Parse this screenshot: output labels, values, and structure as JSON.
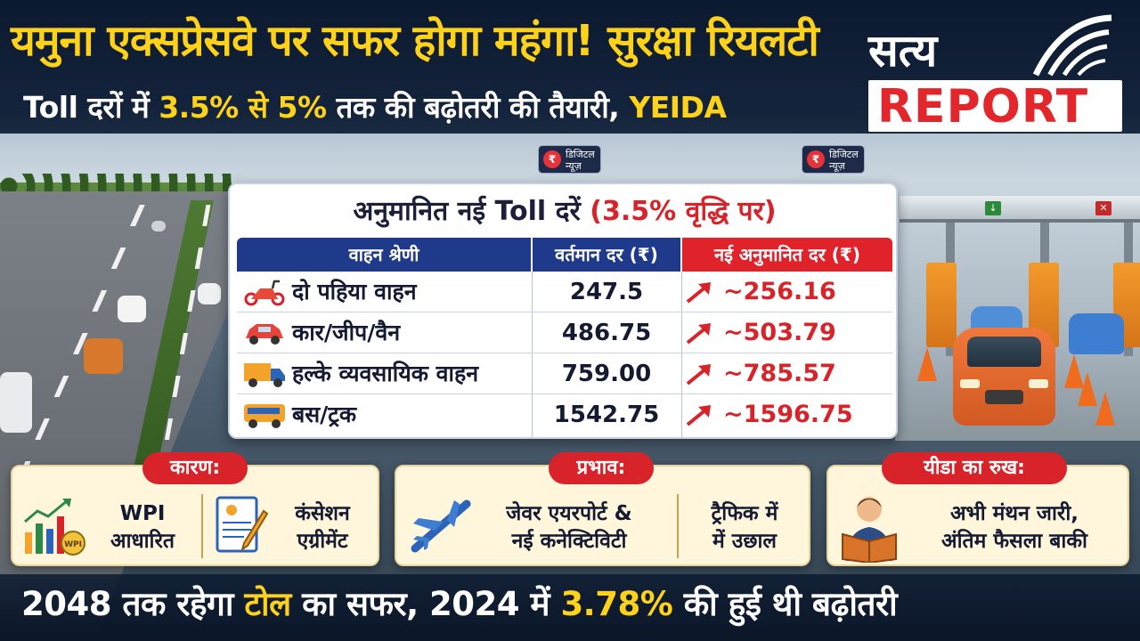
{
  "headline": {
    "line1_part1": "यमुना एक्सप्रेसवे पर सफर होगा",
    "line1_part2": "महंगा!",
    "line1_part3": "सुरक्षा रियलटी",
    "line2_part1": "Toll दरों में",
    "line2_part2": "3.5% से 5%",
    "line2_part3": "तक की बढ़ोतरी की तैयारी,",
    "line2_part4": "YEIDA"
  },
  "logo": {
    "top_text": "सत्य",
    "bottom_text": "REPORT",
    "accent_color": "#e3262b"
  },
  "badges": [
    {
      "line1": "डिजिटल",
      "line2": "न्यूज़"
    },
    {
      "line1": "डिजिटल",
      "line2": "न्यूज़"
    }
  ],
  "table": {
    "title_main": "अनुमानित नई Toll दरें",
    "title_note": "(3.5% वृद्धि पर)",
    "headers": [
      "वाहन श्रेणी",
      "वर्तमान दर (₹)",
      "नई अनुमानित दर (₹)"
    ],
    "rows": [
      {
        "icon": "scooter-icon",
        "category": "दो पहिया वाहन",
        "current": "247.5",
        "estimated": "~256.16"
      },
      {
        "icon": "car-icon",
        "category": "कार/जीप/वैन",
        "current": "486.75",
        "estimated": "~503.79"
      },
      {
        "icon": "truck-icon",
        "category": "हल्के व्यवसायिक वाहन",
        "current": "759.00",
        "estimated": "~785.57"
      },
      {
        "icon": "bus-icon",
        "category": "बस/ट्रक",
        "current": "1542.75",
        "estimated": "~1596.75"
      }
    ],
    "header_colors": {
      "primary": "#1f3a8a",
      "highlight": "#e0222b"
    }
  },
  "cards": {
    "reason": {
      "label": "कारण:",
      "item1_line1": "WPI",
      "item1_line2": "आधारित",
      "item1_icon_text": "WPI",
      "item2_line1": "कंसेशन",
      "item2_line2": "एग्रीमेंट"
    },
    "impact": {
      "label": "प्रभाव:",
      "item1_line1": "जेवर एयरपोर्ट &",
      "item1_line2": "नई कनेक्टिविटी",
      "item2_line1": "ट्रैफिक में",
      "item2_line2": "में उछाल"
    },
    "stance": {
      "label": "यीडा का रुख:",
      "line1": "अभी मंथन जारी,",
      "line2": "अंतिम फैसला बाकी"
    }
  },
  "footer": {
    "part1": "2048 तक रहेगा",
    "part2": "टोल",
    "part3": "का सफर, 2024 में",
    "part4": "3.78%",
    "part5": "की हुई थी बढ़ोतरी"
  }
}
